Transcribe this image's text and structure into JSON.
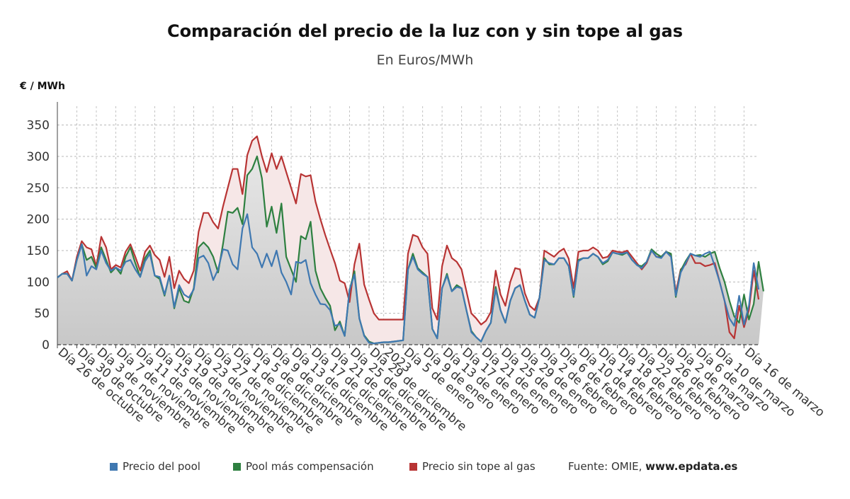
{
  "chart_data": {
    "type": "line",
    "title": "Comparación del precio de la luz con y sin tope al gas",
    "subtitle": "En Euros/MWh",
    "ylabel": "€ / MWh",
    "ylim": [
      0,
      380
    ],
    "yticks": [
      0,
      50,
      100,
      150,
      200,
      250,
      300,
      350
    ],
    "grid": true,
    "legend_position": "bottom",
    "source_label": "Fuente: OMIE, ",
    "source_site": "www.epdata.es",
    "x_tick_labels": [
      "Día 26 de octubre",
      "Día 30 de octubre",
      "Día 3 de noviembre",
      "Día 7 de noviembre",
      "Día 11 de noviembre",
      "Día 15 de noviembre",
      "Día 19 de noviembre",
      "Día 23 de noviembre",
      "Día 27 de noviembre",
      "Día 1 de diciembre",
      "Día 5 de diciembre",
      "Día 9 de diciembre",
      "Día 13 de diciembre",
      "Día 17 de diciembre",
      "Día 21 de diciembre",
      "Día 25 de diciembre",
      "Día 29 de diciembre",
      "2023",
      "Día 5 de enero",
      "Día 9 de enero",
      "Día 13 de enero",
      "Día 17 de enero",
      "Día 21 de enero",
      "Día 25 de enero",
      "Día 29 de enero",
      "Día 2 de febrero",
      "Día 6 de febrero",
      "Día 10 de febrero",
      "Día 14 de febrero",
      "Día 18 de febrero",
      "Día 22 de febrero",
      "Día 26 de febrero",
      "Día 2 de marzo",
      "Día 6 de marzo",
      "Día 10 de marzo",
      "Día 16 de marzo"
    ],
    "x_tick_positions": [
      0,
      4,
      8,
      12,
      16,
      20,
      24,
      28,
      32,
      36,
      40,
      44,
      48,
      52,
      56,
      60,
      64,
      67,
      71,
      75,
      79,
      83,
      87,
      91,
      95,
      99,
      103,
      107,
      111,
      115,
      119,
      123,
      127,
      131,
      135,
      141
    ],
    "series": [
      {
        "name": "Precio del pool",
        "color": "#3f78b1",
        "values": [
          107,
          113,
          113,
          102,
          135,
          160,
          110,
          125,
          120,
          150,
          130,
          118,
          123,
          118,
          132,
          135,
          120,
          108,
          133,
          145,
          110,
          108,
          80,
          110,
          60,
          95,
          80,
          75,
          88,
          138,
          142,
          130,
          103,
          120,
          152,
          150,
          128,
          120,
          185,
          208,
          155,
          145,
          123,
          145,
          125,
          150,
          115,
          100,
          80,
          132,
          130,
          135,
          98,
          80,
          65,
          64,
          55,
          30,
          33,
          14,
          87,
          112,
          42,
          14,
          3,
          2,
          3,
          4,
          4,
          5,
          6,
          7,
          120,
          140,
          120,
          113,
          108,
          25,
          10,
          90,
          110,
          85,
          92,
          90,
          55,
          20,
          12,
          5,
          22,
          35,
          88,
          55,
          35,
          70,
          90,
          95,
          70,
          48,
          43,
          75,
          135,
          130,
          128,
          138,
          138,
          125,
          78,
          133,
          138,
          138,
          145,
          140,
          130,
          135,
          147,
          145,
          145,
          147,
          135,
          127,
          122,
          132,
          150,
          140,
          138,
          148,
          140,
          78,
          115,
          130,
          145,
          142,
          140,
          145,
          148,
          125,
          100,
          70,
          42,
          30,
          78,
          32,
          62,
          130,
          88
        ]
      },
      {
        "name": "Pool más compensación",
        "color": "#2e8040",
        "values": [
          107,
          113,
          113,
          102,
          135,
          160,
          135,
          140,
          122,
          155,
          135,
          115,
          123,
          113,
          140,
          155,
          130,
          108,
          138,
          150,
          110,
          105,
          78,
          110,
          58,
          90,
          70,
          67,
          90,
          155,
          163,
          155,
          140,
          115,
          160,
          212,
          210,
          218,
          192,
          270,
          280,
          300,
          265,
          188,
          220,
          178,
          225,
          140,
          120,
          100,
          173,
          168,
          196,
          118,
          90,
          75,
          62,
          23,
          37,
          14,
          87,
          117,
          42,
          15,
          5,
          2,
          3,
          4,
          4,
          5,
          6,
          7,
          120,
          145,
          122,
          115,
          108,
          25,
          10,
          90,
          113,
          85,
          95,
          90,
          55,
          22,
          12,
          5,
          22,
          35,
          92,
          55,
          35,
          70,
          90,
          95,
          70,
          48,
          43,
          75,
          138,
          128,
          128,
          138,
          138,
          125,
          76,
          135,
          138,
          138,
          145,
          140,
          128,
          133,
          147,
          145,
          143,
          147,
          135,
          127,
          125,
          132,
          152,
          145,
          140,
          148,
          145,
          76,
          118,
          133,
          145,
          142,
          143,
          140,
          145,
          148,
          122,
          100,
          70,
          45,
          35,
          80,
          40,
          65,
          132,
          85
        ]
      },
      {
        "name": "Precio sin tope al gas",
        "color": "#b83434",
        "values": [
          107,
          113,
          117,
          102,
          140,
          165,
          155,
          152,
          125,
          172,
          155,
          120,
          127,
          123,
          148,
          160,
          140,
          118,
          148,
          158,
          143,
          135,
          108,
          140,
          90,
          118,
          105,
          98,
          118,
          180,
          210,
          210,
          195,
          185,
          220,
          250,
          280,
          280,
          240,
          302,
          325,
          332,
          300,
          275,
          305,
          280,
          300,
          275,
          250,
          225,
          272,
          268,
          270,
          228,
          200,
          175,
          152,
          130,
          102,
          98,
          68,
          128,
          161,
          96,
          72,
          50,
          40,
          40,
          40,
          40,
          40,
          40,
          145,
          175,
          172,
          155,
          145,
          58,
          40,
          125,
          158,
          138,
          132,
          120,
          85,
          50,
          42,
          32,
          38,
          52,
          118,
          80,
          62,
          100,
          122,
          120,
          82,
          62,
          55,
          75,
          150,
          145,
          140,
          148,
          153,
          137,
          90,
          148,
          150,
          150,
          155,
          150,
          138,
          140,
          150,
          148,
          147,
          150,
          140,
          130,
          120,
          130,
          150,
          140,
          140,
          148,
          142,
          83,
          120,
          128,
          145,
          130,
          130,
          125,
          127,
          130,
          100,
          70,
          20,
          10,
          62,
          28,
          55,
          118,
          72
        ]
      }
    ]
  }
}
